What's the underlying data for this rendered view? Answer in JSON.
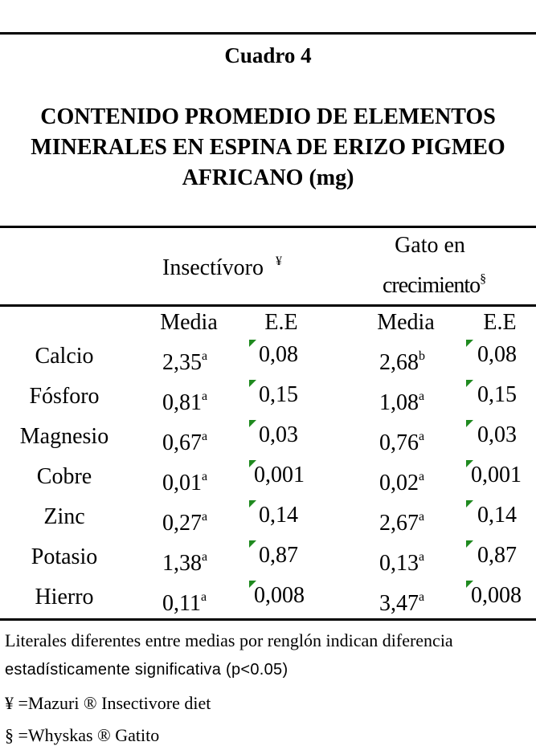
{
  "caption": "Cuadro 4",
  "title_lines": [
    "CONTENIDO PROMEDIO DE ELEMENTOS",
    "MINERALES EN ESPINA DE ERIZO PIGMEO",
    "AFRICANO (mg)"
  ],
  "groups": {
    "insect": {
      "label": "Insectívoro",
      "mark": "¥"
    },
    "gato": {
      "line1": "Gato en",
      "line2": "crecimiento",
      "mark": "§"
    }
  },
  "subheaders": {
    "mean": "Media",
    "se": "E.E"
  },
  "rows": [
    {
      "name": "Calcio",
      "m1": "2,35",
      "s1": "a",
      "e1": "0,08",
      "m2": "2,68",
      "s2": "b",
      "e2": "0,08"
    },
    {
      "name": "Fósforo",
      "m1": "0,81",
      "s1": "a",
      "e1": "0,15",
      "m2": "1,08",
      "s2": "a",
      "e2": "0,15"
    },
    {
      "name": "Magnesio",
      "m1": "0,67",
      "s1": "a",
      "e1": "0,03",
      "m2": "0,76",
      "s2": "a",
      "e2": "0,03"
    },
    {
      "name": "Cobre",
      "m1": "0,01",
      "s1": "a",
      "e1": "0,001",
      "m2": "0,02",
      "s2": "a",
      "e2": "0,001"
    },
    {
      "name": "Zinc",
      "m1": "0,27",
      "s1": "a",
      "e1": "0,14",
      "m2": "2,67",
      "s2": "a",
      "e2": "0,14"
    },
    {
      "name": "Potasio",
      "m1": "1,38",
      "s1": "a",
      "e1": "0,87",
      "m2": "0,13",
      "s2": "a",
      "e2": "0,87"
    },
    {
      "name": "Hierro",
      "m1": "0,11",
      "s1": "a",
      "e1": "0,008",
      "m2": "3,47",
      "s2": "a",
      "e2": "0,008"
    }
  ],
  "footnotes": {
    "line1": "Literales diferentes entre medias por renglón indican diferencia",
    "line2": "estadísticamente significativa  (p<0.05)",
    "line3": "¥ =Mazuri ® Insectivore diet",
    "line4": "§ =Whyskas ®   Gatito"
  }
}
